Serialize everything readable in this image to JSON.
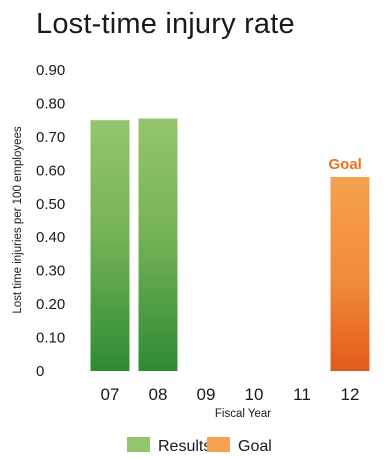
{
  "chart_data": {
    "type": "bar",
    "title": "Lost-time injury rate",
    "xlabel": "Fiscal Year",
    "ylabel": "Lost time injuries per 100 employees",
    "ylim": [
      0,
      0.9
    ],
    "yticks": [
      "0",
      "0.10",
      "0.20",
      "0.30",
      "0.40",
      "0.50",
      "0.60",
      "0.70",
      "0.80",
      "0.90"
    ],
    "categories": [
      "07",
      "08",
      "09",
      "10",
      "11",
      "12"
    ],
    "series": [
      {
        "name": "Results",
        "values": [
          0.75,
          0.755,
          null,
          null,
          null,
          null
        ],
        "color_top": "#94c56d",
        "color_bottom": "#2e8b33"
      },
      {
        "name": "Goal",
        "values": [
          null,
          null,
          null,
          null,
          null,
          0.58
        ],
        "color_top": "#f5a14f",
        "color_bottom": "#e25a1a"
      }
    ],
    "annotations": [
      {
        "text": "Goal",
        "category": "12",
        "color": "#e9731f"
      }
    ],
    "legend": {
      "position": "bottom"
    },
    "grid": false
  }
}
